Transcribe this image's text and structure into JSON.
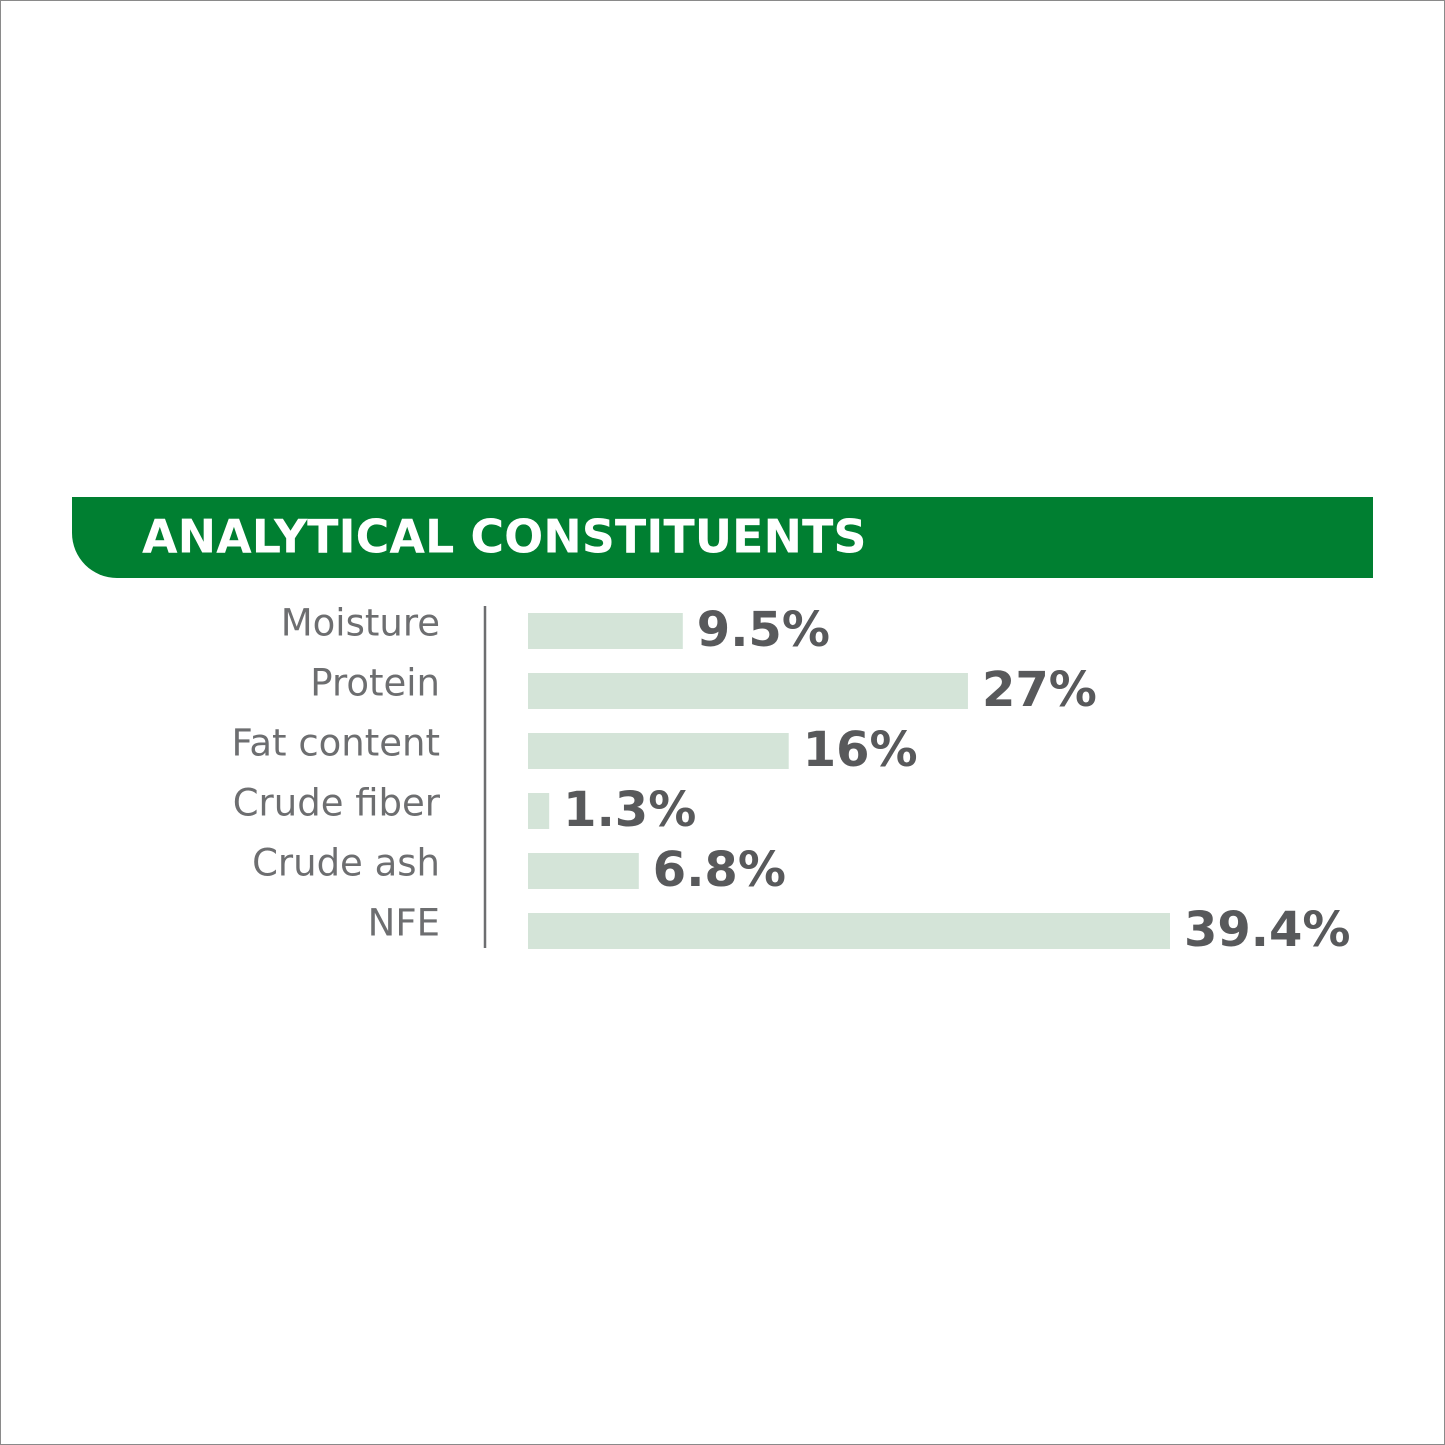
{
  "chart_data": {
    "type": "bar",
    "orientation": "horizontal",
    "title": "ANALYTICAL CONSTITUENTS",
    "categories": [
      "Moisture",
      "Protein",
      "Fat content",
      "Crude fiber",
      "Crude ash",
      "NFE"
    ],
    "values": [
      9.5,
      27,
      16,
      1.3,
      6.8,
      39.4
    ],
    "value_labels": [
      "9.5%",
      "27%",
      "16%",
      "1.3%",
      "6.8%",
      "39.4%"
    ],
    "color": "#d4e4d8",
    "title_background": "#007f31"
  }
}
